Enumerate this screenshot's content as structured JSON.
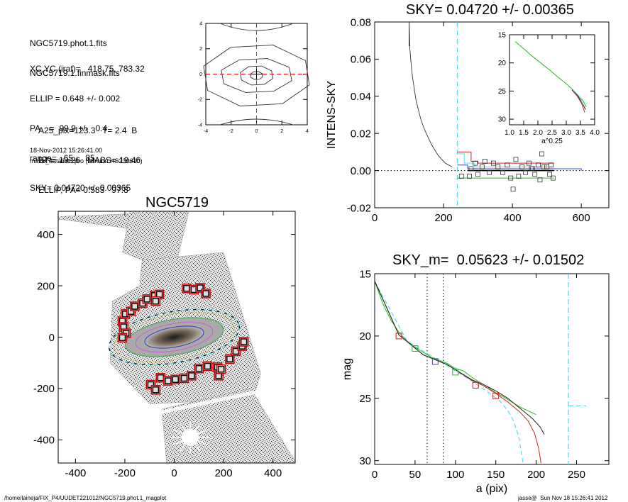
{
  "info": {
    "lines1": [
      "NGC5719.phot.1.fits",
      "NGC5719.1.finmask.fits"
    ],
    "lines2": [
      "XC,YC (iraf)=   418.75, 783.32",
      "ELLIP = 0.648 +/- 0.002",
      "PA    =  99.9 +/-   0.4",
      "range=   65.-   85.",
      "SKY= 0.04720 +/- 0.00365"
    ],
    "lines3": [
      "A25_pix=123.3   T= 2.4  B",
      "BT=  13.26   MABS=-19.46",
      "ELLIP, PA= 0.583   97.8"
    ],
    "date": "18-Nov-2012 15:26:41.00",
    "program": "make_datalist0.pro (version HS230610)"
  },
  "footer": {
    "path": "/home/laineja/FIX_P4/UUDET221012/NGC5719.phot.1_magplot",
    "user": "jasse@  Sun Nov 18 15:26:41 2012"
  },
  "chart_data": [
    {
      "id": "contour",
      "type": "contour",
      "xlim": [
        -4,
        4
      ],
      "ylim": [
        -4,
        4
      ],
      "x_ticks": [
        "-4",
        "-2",
        "0",
        "2",
        "4"
      ],
      "y_ticks": [
        "-4",
        "-2",
        "0",
        "2",
        "4"
      ],
      "crosshair_color": "#ff0000"
    },
    {
      "id": "sky",
      "type": "line",
      "title": "SKY= 0.04720 +/- 0.00365",
      "ylabel": "INTENS-SKY",
      "xlim": [
        0,
        680
      ],
      "ylim": [
        -0.02,
        0.08
      ],
      "x_ticks": [
        "0",
        "200",
        "400",
        "600"
      ],
      "y_ticks": [
        "-0.02",
        "0.00",
        "0.02",
        "0.04",
        "0.06",
        "0.08"
      ],
      "sky_line_x": 240,
      "profile": [
        [
          100,
          0.08
        ],
        [
          102,
          0.066
        ],
        [
          105,
          0.059
        ],
        [
          110,
          0.05
        ],
        [
          115,
          0.044
        ],
        [
          120,
          0.038
        ],
        [
          128,
          0.032
        ],
        [
          135,
          0.027
        ],
        [
          145,
          0.022
        ],
        [
          155,
          0.018
        ],
        [
          165,
          0.014
        ],
        [
          175,
          0.011
        ],
        [
          185,
          0.008
        ],
        [
          195,
          0.006
        ],
        [
          205,
          0.004
        ],
        [
          215,
          0.003
        ],
        [
          225,
          0.002
        ]
      ],
      "points": [
        [
          252,
          -0.003
        ],
        [
          275,
          -0.003
        ],
        [
          280,
          0.001
        ],
        [
          292,
          0.004
        ],
        [
          300,
          -0.002
        ],
        [
          312,
          0.002
        ],
        [
          320,
          0.005
        ],
        [
          333,
          -0.001
        ],
        [
          345,
          0.004
        ],
        [
          358,
          0.002
        ],
        [
          372,
          -0.001
        ],
        [
          385,
          0.003
        ],
        [
          395,
          -0.004
        ],
        [
          402,
          -0.01
        ],
        [
          410,
          0.006
        ],
        [
          418,
          -0.003
        ],
        [
          428,
          0.002
        ],
        [
          438,
          -0.001
        ],
        [
          448,
          0.004
        ],
        [
          458,
          0.001
        ],
        [
          465,
          -0.002
        ],
        [
          475,
          0.003
        ],
        [
          485,
          0.009
        ],
        [
          492,
          0.002
        ],
        [
          500,
          0.002
        ],
        [
          508,
          -0.002
        ],
        [
          512,
          0.003
        ],
        [
          518,
          -0.004
        ],
        [
          480,
          -0.005
        ],
        [
          455,
          0.001
        ]
      ],
      "inset": {
        "xlabel": "a^0.25",
        "xlim": [
          1.0,
          4.0
        ],
        "ylim": [
          15,
          31
        ],
        "x_ticks": [
          "1.0",
          "1.5",
          "2.0",
          "2.5",
          "3.0",
          "3.5",
          "4.0"
        ],
        "y_ticks": [
          "15",
          "20",
          "25",
          "30"
        ]
      }
    },
    {
      "id": "image",
      "type": "image",
      "title": "NGC5719",
      "xlim": [
        -470,
        490
      ],
      "ylim": [
        -490,
        490
      ],
      "x_ticks": [
        "-400",
        "-200",
        "0",
        "200",
        "400"
      ],
      "y_ticks": [
        "-400",
        "-200",
        "0",
        "200",
        "400"
      ],
      "masks": [
        [
          -210,
          62
        ],
        [
          -198,
          90
        ],
        [
          -175,
          100
        ],
        [
          -160,
          120
        ],
        [
          -128,
          132
        ],
        [
          -110,
          148
        ],
        [
          -80,
          162
        ],
        [
          -60,
          166
        ],
        [
          -75,
          140
        ],
        [
          50,
          190
        ],
        [
          80,
          185
        ],
        [
          105,
          192
        ],
        [
          128,
          170
        ],
        [
          -205,
          40
        ],
        [
          -195,
          15
        ],
        [
          -210,
          -2
        ],
        [
          -95,
          -185
        ],
        [
          -75,
          -205
        ],
        [
          -55,
          -158
        ],
        [
          -25,
          -170
        ],
        [
          5,
          -165
        ],
        [
          40,
          -160
        ],
        [
          70,
          -150
        ],
        [
          100,
          -122
        ],
        [
          135,
          -113
        ],
        [
          175,
          -117
        ],
        [
          180,
          -150
        ],
        [
          190,
          -125
        ],
        [
          225,
          -85
        ],
        [
          250,
          -55
        ],
        [
          275,
          -35
        ],
        [
          282,
          -18
        ]
      ]
    },
    {
      "id": "mag",
      "type": "line",
      "title": "SKY_m=  0.05623 +/- 0.01502",
      "xlabel": "a (pix)",
      "ylabel": "mag",
      "xlim": [
        0,
        290
      ],
      "ylim": [
        15,
        30.3
      ],
      "x_ticks": [
        "0",
        "50",
        "100",
        "150",
        "200",
        "250"
      ],
      "y_ticks": [
        "15",
        "20",
        "25",
        "30"
      ],
      "vlines_dotted": [
        65,
        85
      ],
      "vline_dashed": 240,
      "series": [
        {
          "color": "#22bb22",
          "values": [
            [
              0,
              15.6
            ],
            [
              10,
              17.4
            ],
            [
              20,
              18.7
            ],
            [
              30,
              19.7
            ],
            [
              40,
              20.4
            ],
            [
              50,
              20.9
            ],
            [
              60,
              21.3
            ],
            [
              70,
              21.7
            ],
            [
              80,
              21.95
            ],
            [
              90,
              22.2
            ],
            [
              100,
              22.6
            ],
            [
              110,
              22.8
            ],
            [
              120,
              23.3
            ],
            [
              130,
              23.7
            ],
            [
              140,
              24.1
            ],
            [
              150,
              24.55
            ],
            [
              160,
              24.9
            ],
            [
              170,
              25.3
            ],
            [
              180,
              25.7
            ],
            [
              190,
              26.0
            ],
            [
              200,
              26.3
            ]
          ]
        },
        {
          "color": "#cc2222",
          "values": [
            [
              0,
              15.6
            ],
            [
              30,
              19.9
            ],
            [
              60,
              21.5
            ],
            [
              90,
              22.3
            ],
            [
              120,
              23.55
            ],
            [
              135,
              24.0
            ],
            [
              150,
              24.6
            ],
            [
              165,
              25.3
            ],
            [
              180,
              26.1
            ],
            [
              190,
              26.8
            ],
            [
              198,
              27.8
            ],
            [
              203,
              29.0
            ],
            [
              206,
              30.2
            ]
          ]
        },
        {
          "color": "#222222",
          "values": [
            [
              0,
              15.6
            ],
            [
              30,
              19.9
            ],
            [
              60,
              21.5
            ],
            [
              90,
              22.3
            ],
            [
              120,
              23.5
            ],
            [
              135,
              23.9
            ],
            [
              150,
              24.4
            ],
            [
              165,
              25.0
            ],
            [
              180,
              25.8
            ],
            [
              195,
              26.6
            ],
            [
              205,
              27.3
            ],
            [
              210,
              27.9
            ]
          ]
        }
      ],
      "dashed_cyan": [
        [
          0,
          15.6
        ],
        [
          40,
          20.4
        ],
        [
          80,
          22.0
        ],
        [
          120,
          23.6
        ],
        [
          140,
          24.5
        ],
        [
          155,
          25.2
        ],
        [
          165,
          26.0
        ],
        [
          172,
          26.8
        ],
        [
          178,
          28.0
        ],
        [
          182,
          29.5
        ],
        [
          184,
          30.3
        ]
      ],
      "markers": [
        {
          "x": 30,
          "y": 20.0,
          "color": "#cc2222"
        },
        {
          "x": 50,
          "y": 21.0,
          "color": "#22bb22"
        },
        {
          "x": 75,
          "y": 22.05,
          "color": "#3344cc"
        },
        {
          "x": 100,
          "y": 22.9,
          "color": "#22bb22"
        },
        {
          "x": 125,
          "y": 23.95,
          "color": "#cc2222"
        },
        {
          "x": 150,
          "y": 24.8,
          "color": "#cc2222"
        }
      ]
    }
  ]
}
